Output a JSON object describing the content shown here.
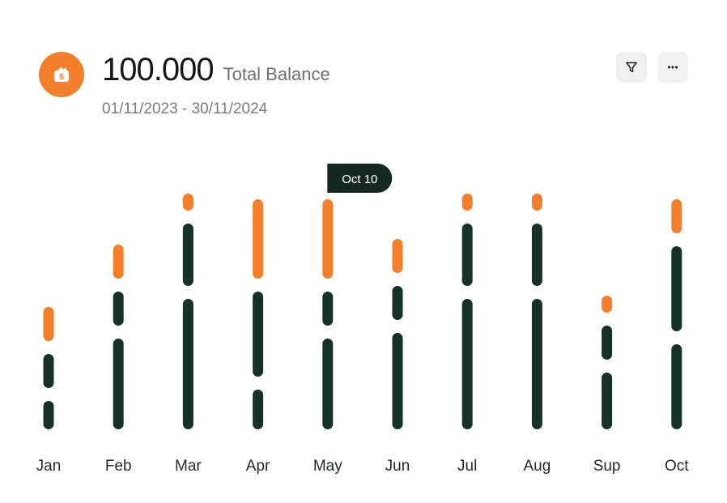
{
  "header": {
    "icon": "wallet-dollar-icon",
    "balance_value": "100.000",
    "balance_label": "Total Balance",
    "date_range": "01/11/2023 - 30/11/2024"
  },
  "actions": {
    "filter_icon": "filter-icon",
    "more_icon": "more-horizontal-icon"
  },
  "colors": {
    "accent": "#f47f2a",
    "dark": "#163126",
    "tooltip_bg": "#15291f"
  },
  "chart_data": {
    "type": "bar",
    "categories": [
      "Jan",
      "Feb",
      "Mar",
      "Apr",
      "May",
      "Jun",
      "Jul",
      "Aug",
      "Sup",
      "Oct"
    ],
    "series": [
      {
        "color": "#163126",
        "values": [
          0.5,
          1.6,
          2.3,
          0.7,
          1.6,
          1.7,
          2.3,
          2.3,
          1.0,
          1.5
        ]
      },
      {
        "color": "#163126",
        "values": [
          0.6,
          0.6,
          1.1,
          1.5,
          0.6,
          0.6,
          1.1,
          1.1,
          0.6,
          1.5
        ]
      },
      {
        "color": "#f47f2a",
        "values": [
          0.6,
          0.6,
          0.3,
          1.4,
          1.4,
          0.6,
          0.3,
          0.3,
          0.3,
          0.6
        ]
      }
    ],
    "ylim": [
      0,
      4.5
    ],
    "tooltip": {
      "category": "May",
      "label": "Oct 10"
    },
    "grid": false,
    "legend": "none"
  }
}
